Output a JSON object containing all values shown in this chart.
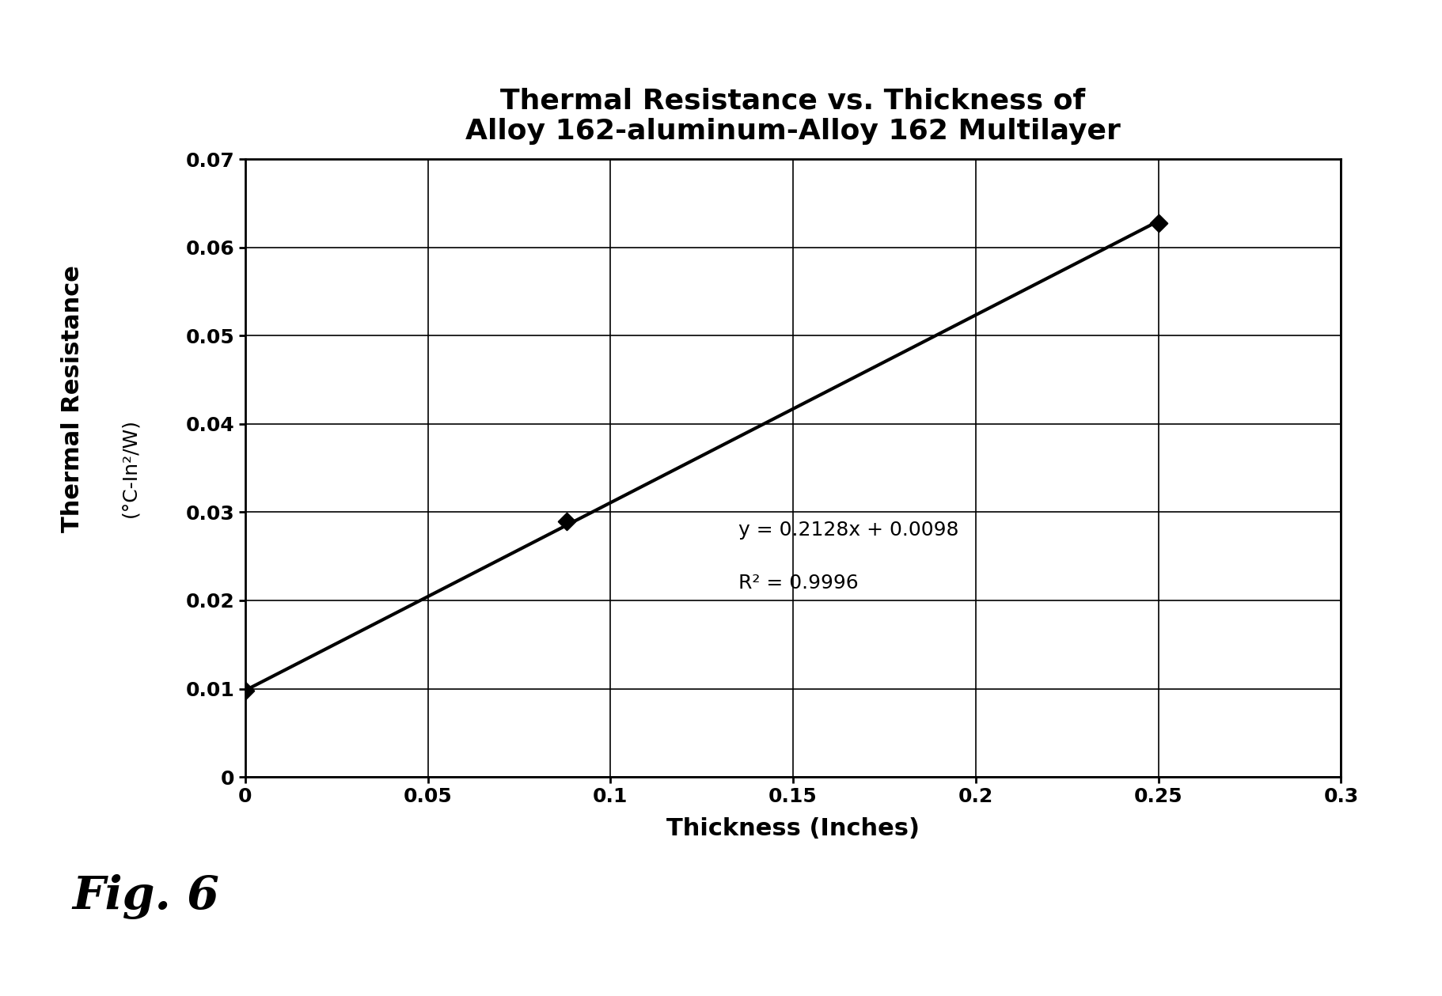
{
  "title_line1": "Thermal Resistance vs. Thickness of",
  "title_line2": "Alloy 162-aluminum-Alloy 162 Multilayer",
  "xlabel": "Thickness (Inches)",
  "ylabel_top": "Thermal Resistance",
  "ylabel_bottom": "(°C-In²/W)",
  "data_x": [
    0.0,
    0.088,
    0.25
  ],
  "data_y": [
    0.0098,
    0.029,
    0.0628
  ],
  "line_x": [
    0.0,
    0.25
  ],
  "slope": 0.2128,
  "intercept": 0.0098,
  "equation_text": "y = 0.2128x + 0.0098",
  "r2_text": "R² = 0.9996",
  "xlim": [
    0,
    0.3
  ],
  "ylim": [
    0,
    0.07
  ],
  "xticks": [
    0,
    0.05,
    0.1,
    0.15,
    0.2,
    0.25,
    0.3
  ],
  "yticks": [
    0,
    0.01,
    0.02,
    0.03,
    0.04,
    0.05,
    0.06,
    0.07
  ],
  "fig_caption": "Fig. 6",
  "background_color": "#ffffff",
  "line_color": "#000000",
  "marker_color": "#000000",
  "title_fontsize": 26,
  "label_fontsize": 22,
  "ylabel_top_fontsize": 22,
  "ylabel_bottom_fontsize": 18,
  "tick_fontsize": 18,
  "annotation_fontsize": 18,
  "caption_fontsize": 42
}
